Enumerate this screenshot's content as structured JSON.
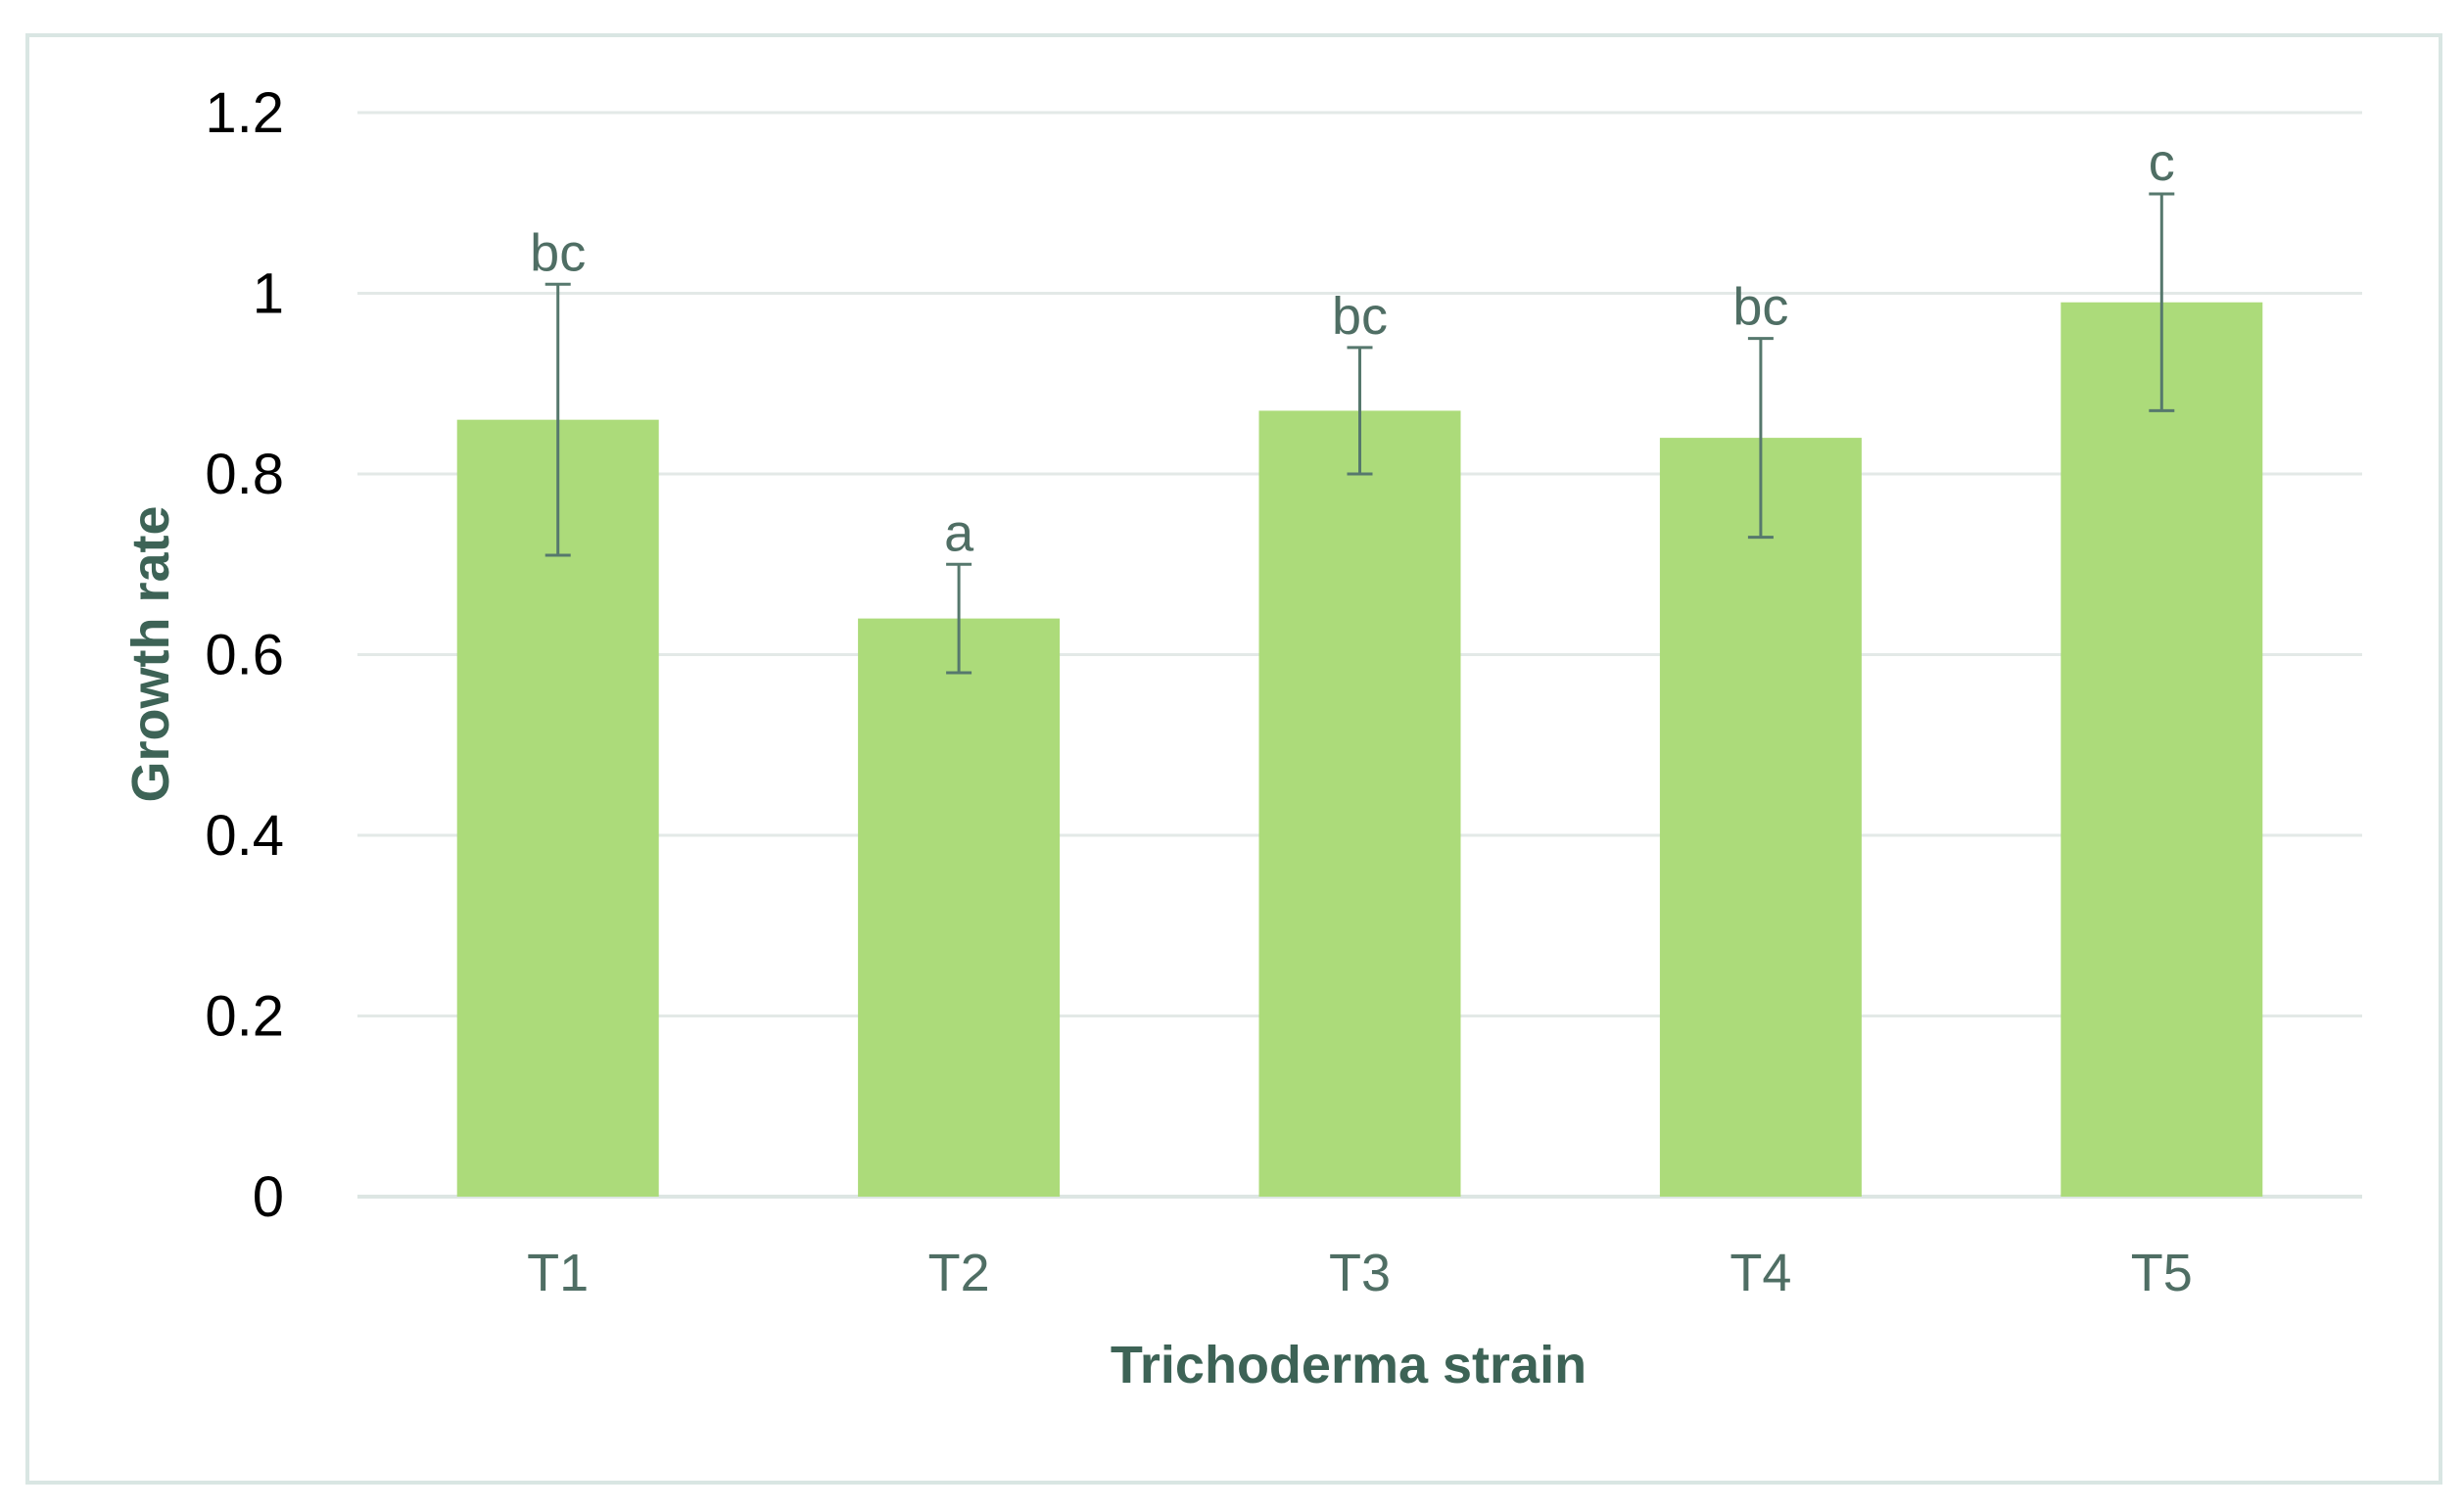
{
  "chart_data": {
    "type": "bar",
    "title": "",
    "xlabel": "Trichoderma strain",
    "ylabel": "Growth rate",
    "categories": [
      "T1",
      "T2",
      "T3",
      "T4",
      "T5"
    ],
    "values": [
      0.86,
      0.64,
      0.87,
      0.84,
      0.99
    ],
    "error_upper": [
      1.01,
      0.7,
      0.94,
      0.95,
      1.11
    ],
    "error_lower": [
      0.71,
      0.58,
      0.8,
      0.73,
      0.87
    ],
    "significance_labels": [
      "bc",
      "a",
      "bc",
      "bc",
      "c"
    ],
    "ylim": [
      0,
      1.2
    ],
    "yticks": [
      0,
      0.2,
      0.4,
      0.6,
      0.8,
      1,
      1.2
    ],
    "ytick_labels": [
      "0",
      "0.2",
      "0.4",
      "0.6",
      "0.8",
      "1",
      "1.2"
    ],
    "grid": true,
    "legend": "none",
    "colors": {
      "bar": "#acdb7a",
      "error_bar": "#56786d",
      "axis_title": "#3d6356",
      "tick_label": "#4f6e64"
    }
  }
}
